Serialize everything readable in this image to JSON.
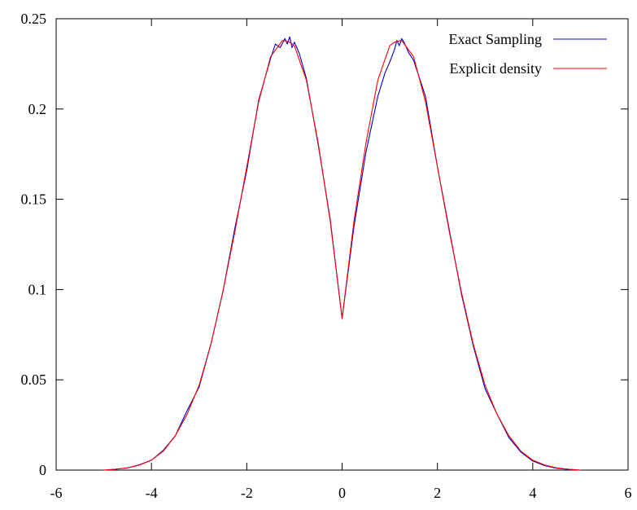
{
  "chart_data": {
    "type": "line",
    "title": "",
    "xlabel": "",
    "ylabel": "",
    "xlim": [
      -6,
      6
    ],
    "ylim": [
      0,
      0.25
    ],
    "x_ticks": [
      -6,
      -4,
      -2,
      0,
      2,
      4,
      6
    ],
    "x_tick_labels": [
      "-6",
      "-4",
      "-2",
      "0",
      "2",
      "4",
      "6"
    ],
    "y_ticks": [
      0,
      0.05,
      0.1,
      0.15,
      0.2,
      0.25
    ],
    "y_tick_labels": [
      "0",
      "0.05",
      "0.1",
      "0.15",
      "0.2",
      "0.25"
    ],
    "grid": false,
    "legend_position": "top-right",
    "series": [
      {
        "name": "Exact Sampling",
        "color": "#0000cc",
        "x": [
          -5.0,
          -4.75,
          -4.5,
          -4.25,
          -4.0,
          -3.75,
          -3.5,
          -3.25,
          -3.0,
          -2.75,
          -2.5,
          -2.25,
          -2.0,
          -1.75,
          -1.5,
          -1.4,
          -1.3,
          -1.2,
          -1.15,
          -1.1,
          -1.05,
          -1.0,
          -0.9,
          -0.75,
          -0.5,
          -0.25,
          0.0,
          0.25,
          0.5,
          0.75,
          0.9,
          1.0,
          1.1,
          1.15,
          1.2,
          1.25,
          1.3,
          1.4,
          1.5,
          1.75,
          2.0,
          2.25,
          2.5,
          2.75,
          3.0,
          3.25,
          3.5,
          3.75,
          4.0,
          4.25,
          4.5,
          4.75,
          5.0
        ],
        "y": [
          0.0,
          0.0005,
          0.0012,
          0.003,
          0.0055,
          0.011,
          0.019,
          0.033,
          0.046,
          0.07,
          0.099,
          0.134,
          0.166,
          0.205,
          0.228,
          0.236,
          0.234,
          0.239,
          0.236,
          0.24,
          0.234,
          0.237,
          0.231,
          0.217,
          0.18,
          0.139,
          0.084,
          0.135,
          0.176,
          0.207,
          0.22,
          0.226,
          0.233,
          0.238,
          0.235,
          0.239,
          0.237,
          0.231,
          0.227,
          0.207,
          0.168,
          0.133,
          0.098,
          0.069,
          0.045,
          0.031,
          0.018,
          0.01,
          0.005,
          0.0025,
          0.001,
          0.0004,
          0.0
        ]
      },
      {
        "name": "Explicit density",
        "color": "#ff0000",
        "x": [
          -5.0,
          -4.75,
          -4.5,
          -4.25,
          -4.0,
          -3.75,
          -3.5,
          -3.25,
          -3.0,
          -2.75,
          -2.5,
          -2.25,
          -2.0,
          -1.75,
          -1.5,
          -1.25,
          -1.1,
          -1.0,
          -0.75,
          -0.5,
          -0.25,
          0.0,
          0.25,
          0.5,
          0.75,
          1.0,
          1.1,
          1.25,
          1.5,
          1.75,
          2.0,
          2.25,
          2.5,
          2.75,
          3.0,
          3.25,
          3.5,
          3.75,
          4.0,
          4.25,
          4.5,
          4.75,
          5.0
        ],
        "y": [
          0.0,
          0.0005,
          0.0012,
          0.0028,
          0.0055,
          0.0105,
          0.019,
          0.031,
          0.047,
          0.07,
          0.099,
          0.132,
          0.168,
          0.204,
          0.229,
          0.238,
          0.237,
          0.235,
          0.216,
          0.181,
          0.138,
          0.084,
          0.138,
          0.181,
          0.216,
          0.235,
          0.237,
          0.238,
          0.229,
          0.204,
          0.168,
          0.132,
          0.099,
          0.07,
          0.047,
          0.031,
          0.019,
          0.0105,
          0.0055,
          0.0028,
          0.0012,
          0.0005,
          0.0
        ]
      }
    ]
  }
}
